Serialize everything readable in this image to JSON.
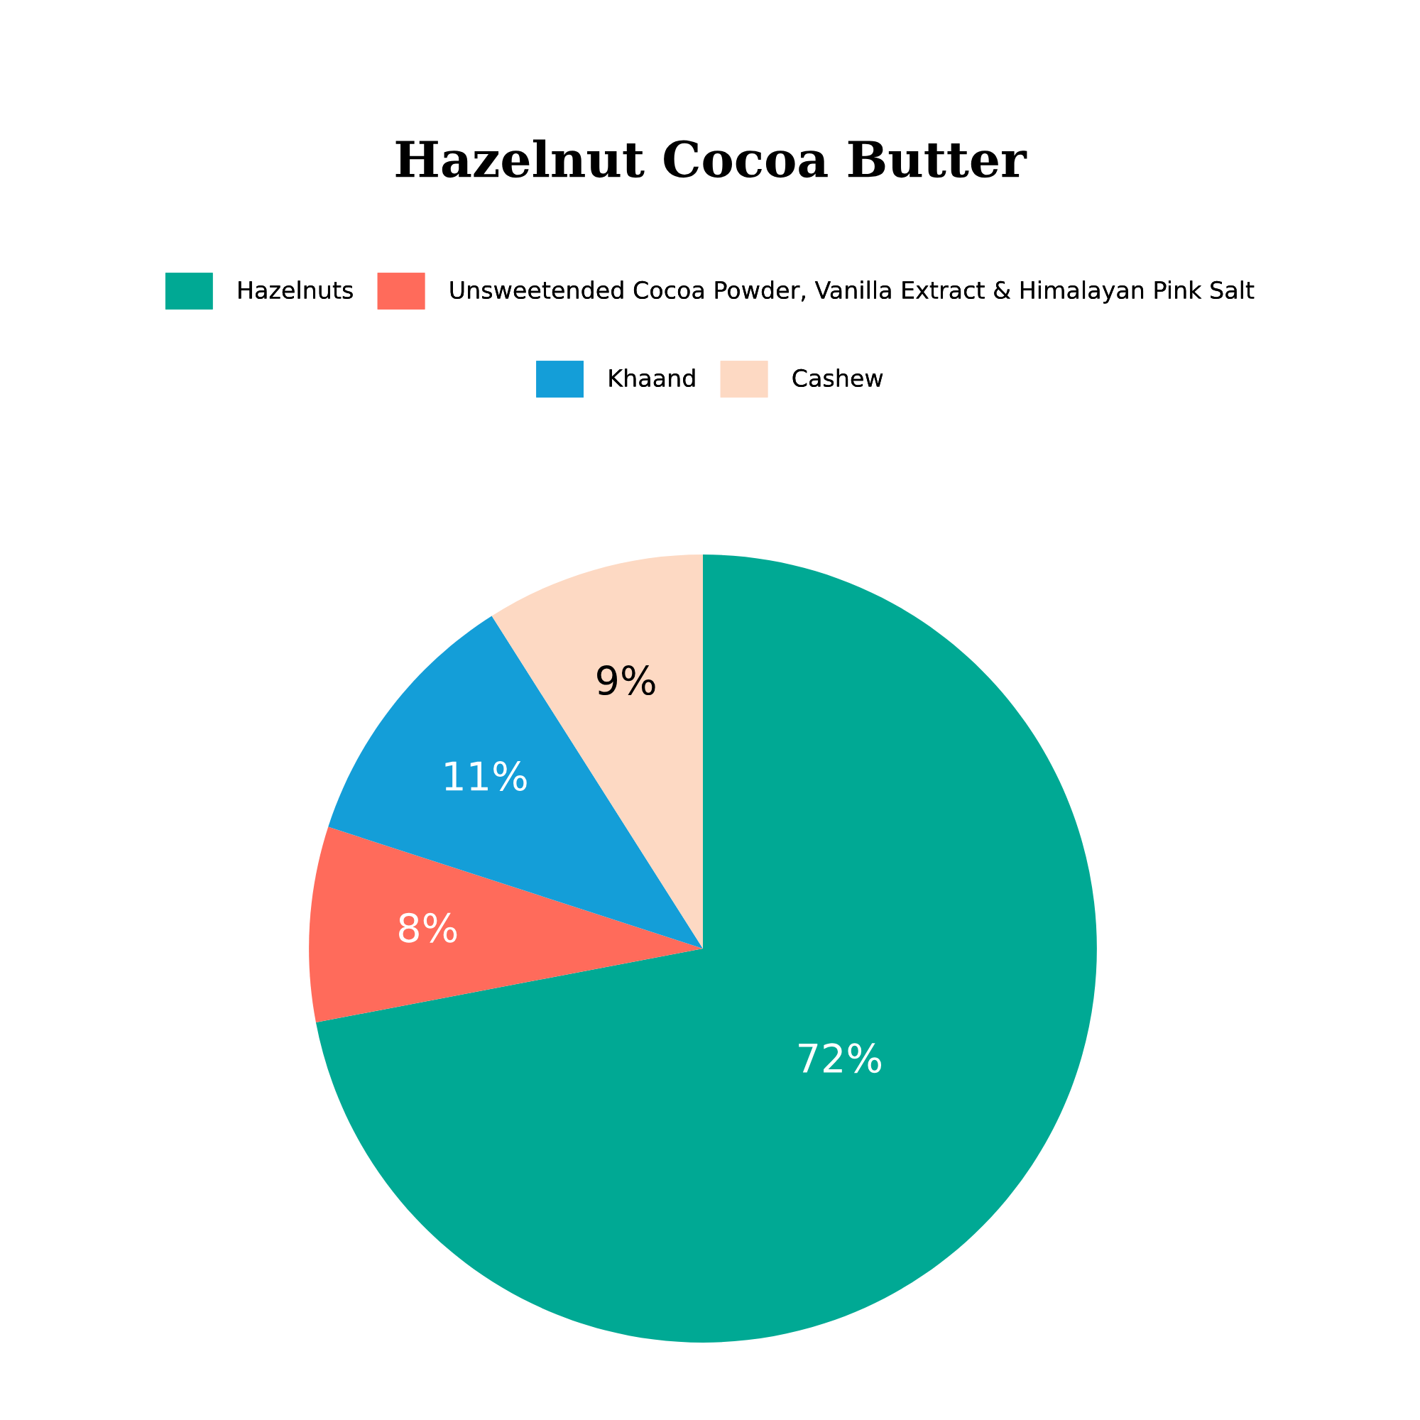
{
  "chart_data": {
    "type": "pie",
    "title": "Hazelnut Cocoa Butter",
    "categories": [
      "Hazelnuts",
      "Unsweetended Cocoa Powder, Vanilla Extract & Himalayan Pink Salt",
      "Khaand",
      "Cashew"
    ],
    "values": [
      72,
      8,
      11,
      9
    ],
    "colors": [
      "#00a994",
      "#ff6b5b",
      "#149ed8",
      "#fdd9c3"
    ],
    "value_labels": [
      "72%",
      "8%",
      "11%",
      "9%"
    ],
    "legend": "top"
  }
}
